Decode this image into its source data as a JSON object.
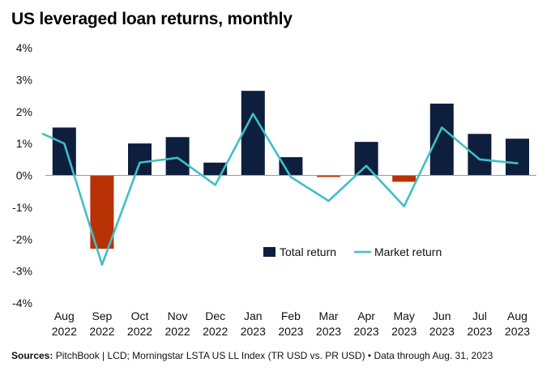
{
  "title": "US leveraged loan returns, monthly",
  "source": {
    "label": "Sources:",
    "text": " PitchBook | LCD; Morningstar LSTA US LL Index (TR USD vs. PR USD) • Data through Aug. 31, 2023"
  },
  "colors": {
    "total_positive": "#0d1f3c",
    "total_negative": "#b83206",
    "market_line": "#40bfc8"
  },
  "chart_data": {
    "type": "bar",
    "categories": [
      "Aug 2022",
      "Sep 2022",
      "Oct 2022",
      "Nov 2022",
      "Dec 2022",
      "Jan 2023",
      "Feb 2023",
      "Mar 2023",
      "Apr 2023",
      "May 2023",
      "Jun 2023",
      "Jul 2023",
      "Aug 2023"
    ],
    "x_labels": [
      [
        "Aug",
        "2022"
      ],
      [
        "Sep",
        "2022"
      ],
      [
        "Oct",
        "2022"
      ],
      [
        "Nov",
        "2022"
      ],
      [
        "Dec",
        "2022"
      ],
      [
        "Jan",
        "2023"
      ],
      [
        "Feb",
        "2023"
      ],
      [
        "Mar",
        "2023"
      ],
      [
        "Apr",
        "2023"
      ],
      [
        "May",
        "2023"
      ],
      [
        "Jun",
        "2023"
      ],
      [
        "Jul",
        "2023"
      ],
      [
        "Aug",
        "2023"
      ]
    ],
    "y_ticks": [
      "4%",
      "3%",
      "2%",
      "1%",
      "0%",
      "-1%",
      "-2%",
      "-3%",
      "-4%"
    ],
    "ylim": [
      -4,
      4
    ],
    "series": [
      {
        "name": "Total return",
        "type": "bar",
        "values": [
          1.5,
          -2.3,
          1.0,
          1.2,
          0.4,
          2.65,
          0.57,
          -0.05,
          1.05,
          -0.2,
          2.25,
          1.3,
          1.15
        ]
      },
      {
        "name": "Market return",
        "type": "line",
        "values": [
          1.0,
          -2.8,
          0.4,
          0.55,
          -0.3,
          1.93,
          -0.05,
          -0.8,
          0.3,
          -0.97,
          1.5,
          0.5,
          0.38
        ],
        "line_start_value": 1.3
      }
    ],
    "legend": {
      "placement": "center-right"
    },
    "grid": false
  }
}
